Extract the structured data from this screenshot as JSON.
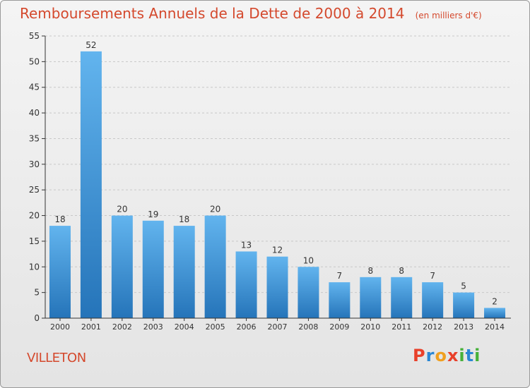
{
  "page": {
    "commune": "VILLETON",
    "brand": "Proxiti",
    "brand_letters": [
      {
        "ch": "P",
        "color": "#e8402a"
      },
      {
        "ch": "r",
        "color": "#2a87d4"
      },
      {
        "ch": "o",
        "color": "#f0a020"
      },
      {
        "ch": "x",
        "color": "#e8402a"
      },
      {
        "ch": "i",
        "color": "#47b13a"
      },
      {
        "ch": "t",
        "color": "#2a87d4"
      },
      {
        "ch": "i",
        "color": "#47b13a"
      }
    ]
  },
  "chart_data": {
    "type": "bar",
    "title": "Remboursements Annuels de la Dette de 2000 à 2014",
    "unit_label": "(en milliers d'€)",
    "xlabel": "",
    "ylabel": "",
    "categories": [
      "2000",
      "2001",
      "2002",
      "2003",
      "2004",
      "2005",
      "2006",
      "2007",
      "2008",
      "2009",
      "2010",
      "2011",
      "2012",
      "2013",
      "2014"
    ],
    "values": [
      18,
      52,
      20,
      19,
      18,
      20,
      13,
      12,
      10,
      7,
      8,
      8,
      7,
      5,
      2
    ],
    "ylim": [
      0,
      55
    ],
    "yticks": [
      0,
      5,
      10,
      15,
      20,
      25,
      30,
      35,
      40,
      45,
      50,
      55
    ],
    "grid": true,
    "colors": {
      "title": "#d4492d",
      "bar_top": "#62b4ee",
      "bar_bottom": "#2574b9",
      "axis": "#333333",
      "grid": "#c8c8c8",
      "label": "#333333"
    }
  }
}
